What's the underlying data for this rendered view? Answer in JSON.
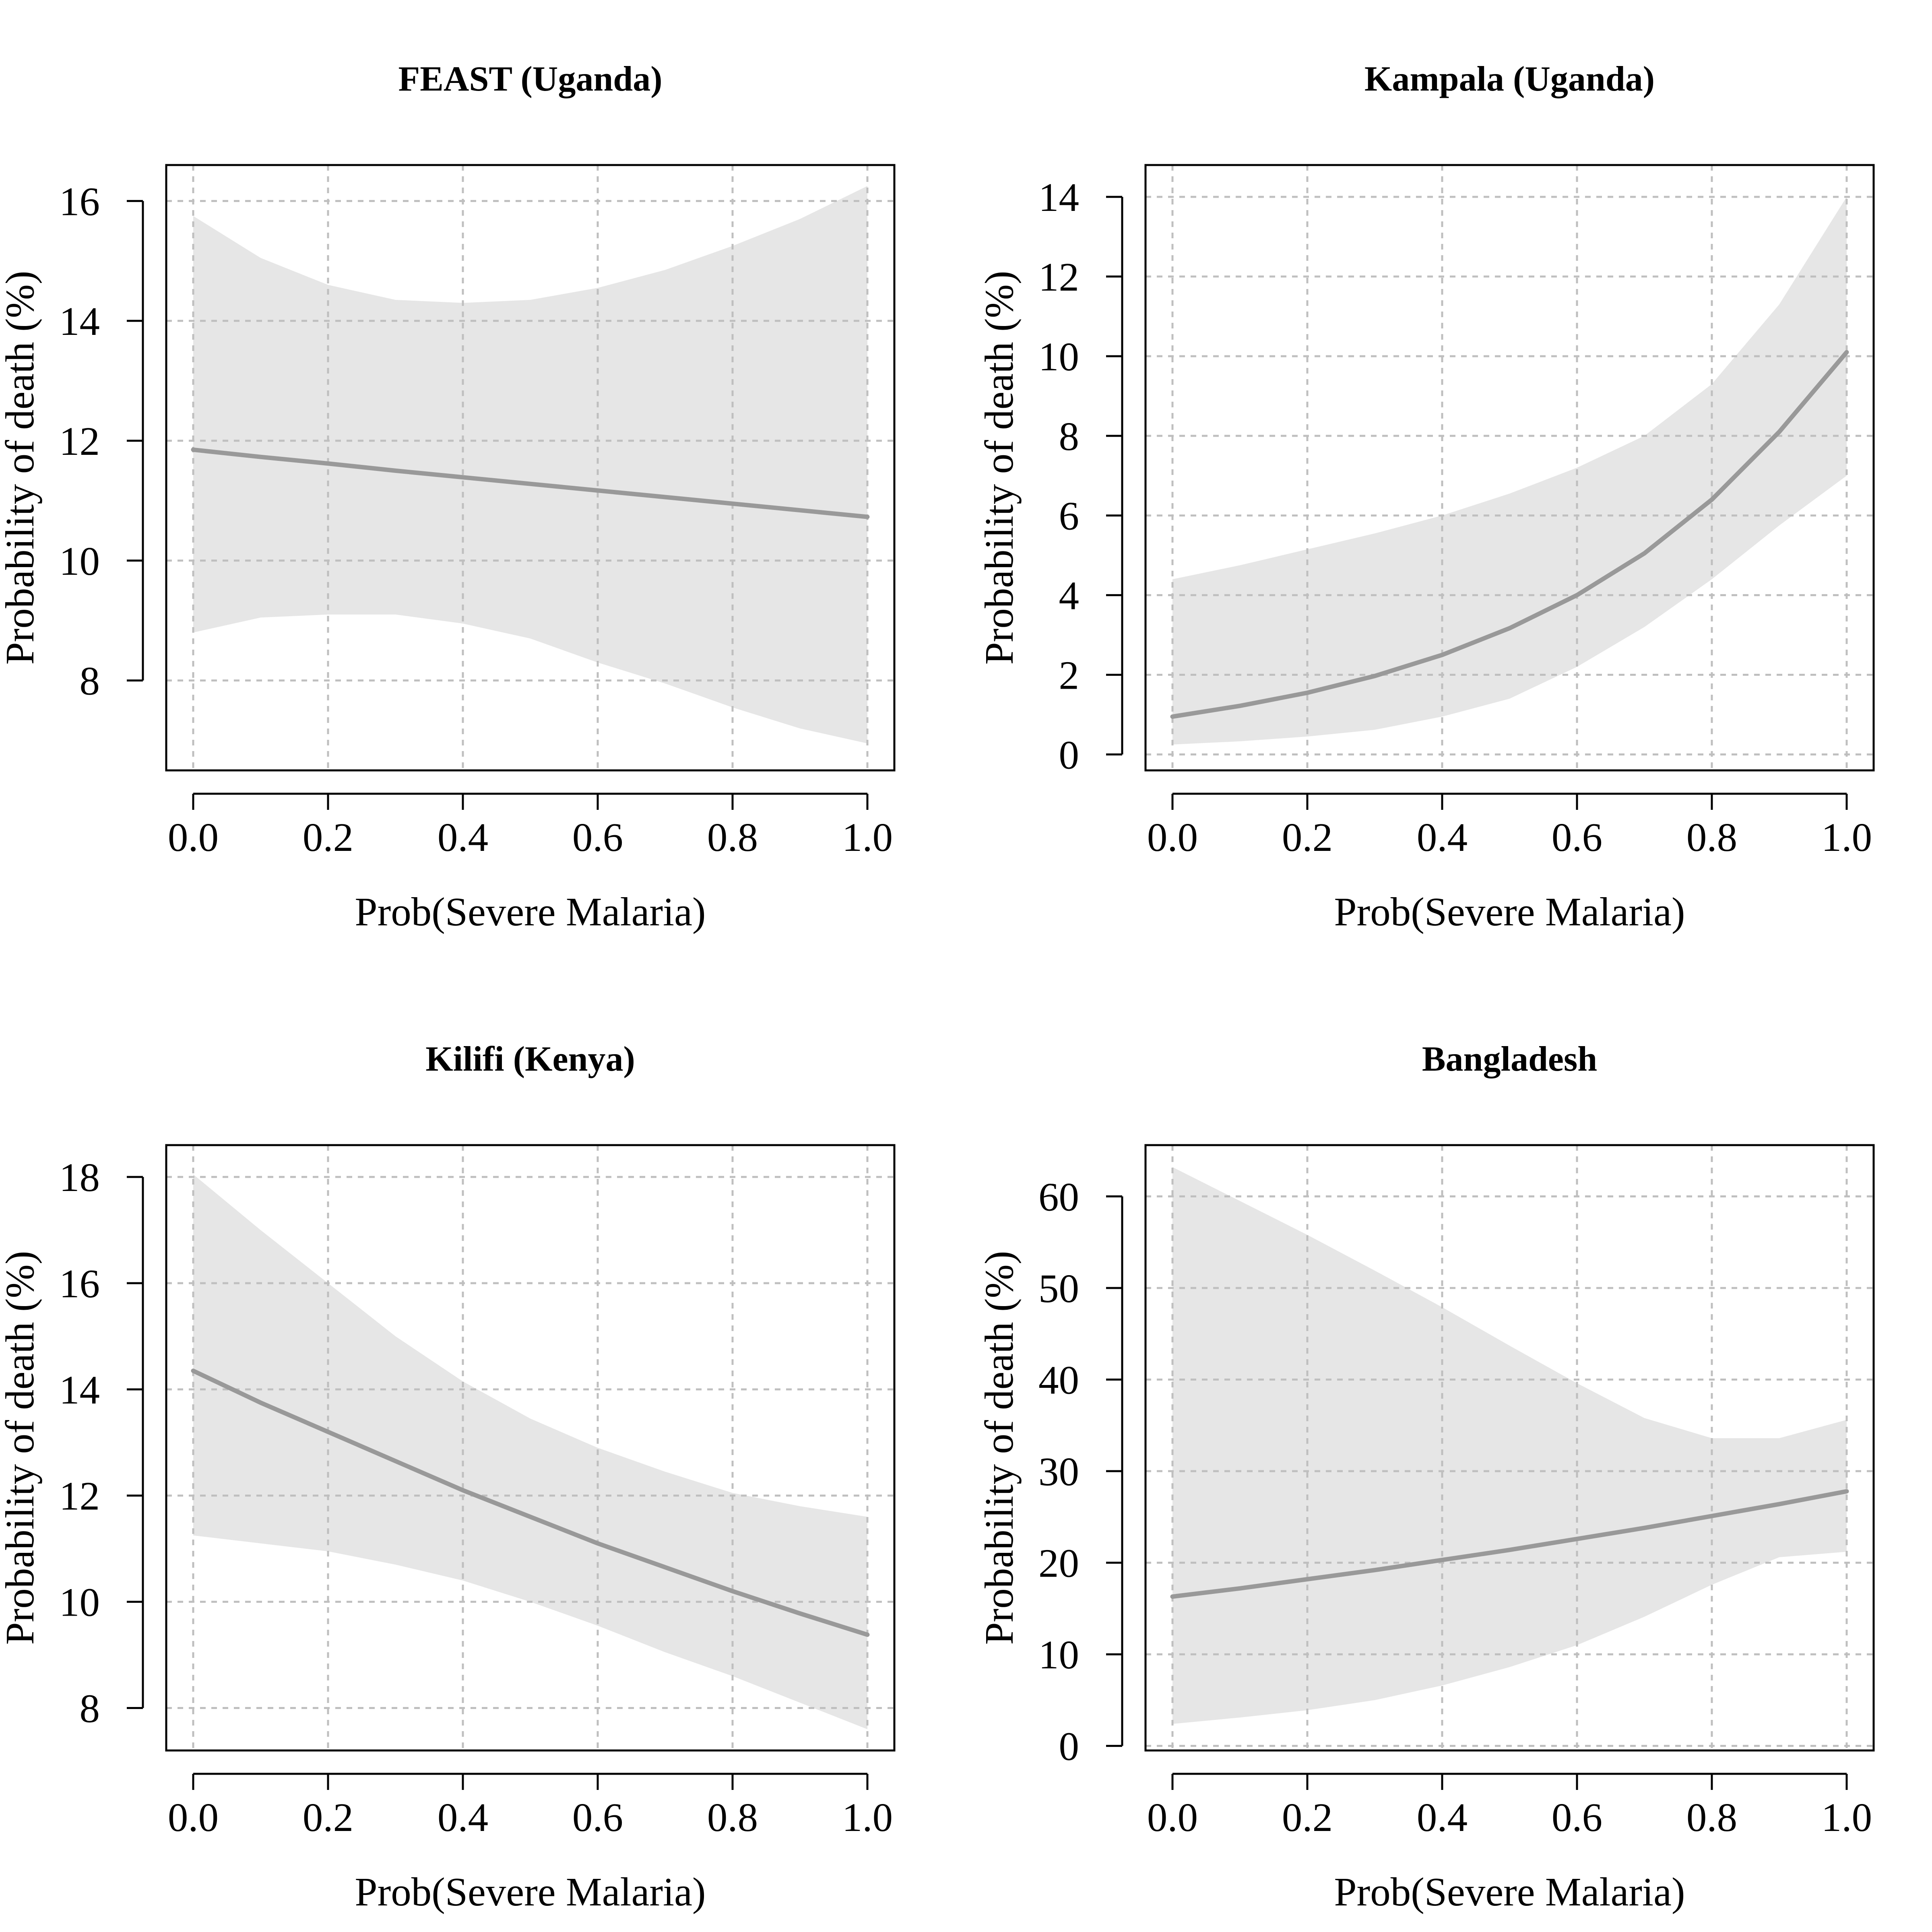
{
  "chart_data": [
    {
      "type": "line",
      "title": "FEAST (Uganda)",
      "xlabel": "Prob(Severe Malaria)",
      "ylabel": "Probability of death (%)",
      "xlim": [
        0,
        1
      ],
      "ylim": [
        6.5,
        16.6
      ],
      "xticks": [
        "0.0",
        "0.2",
        "0.4",
        "0.6",
        "0.8",
        "1.0"
      ],
      "yticks": [
        "8",
        "10",
        "12",
        "14",
        "16"
      ],
      "grid": true,
      "series": [
        {
          "x": [
            0,
            0.1,
            0.2,
            0.3,
            0.4,
            0.5,
            0.6,
            0.7,
            0.8,
            0.9,
            1.0
          ],
          "values": [
            11.85,
            11.73,
            11.62,
            11.5,
            11.39,
            11.28,
            11.17,
            11.06,
            10.95,
            10.84,
            10.73
          ],
          "lower": [
            8.8,
            9.05,
            9.1,
            9.1,
            8.95,
            8.7,
            8.3,
            7.95,
            7.55,
            7.2,
            6.95
          ],
          "upper": [
            15.75,
            15.05,
            14.6,
            14.35,
            14.3,
            14.35,
            14.55,
            14.85,
            15.25,
            15.7,
            16.25
          ]
        }
      ]
    },
    {
      "type": "line",
      "title": "Kampala (Uganda)",
      "xlabel": "Prob(Severe Malaria)",
      "ylabel": "Probability of death (%)",
      "xlim": [
        0,
        1
      ],
      "ylim": [
        -0.4,
        14.8
      ],
      "xticks": [
        "0.0",
        "0.2",
        "0.4",
        "0.6",
        "0.8",
        "1.0"
      ],
      "yticks": [
        "0",
        "2",
        "4",
        "6",
        "8",
        "10",
        "12",
        "14"
      ],
      "grid": true,
      "series": [
        {
          "x": [
            0,
            0.1,
            0.2,
            0.3,
            0.4,
            0.5,
            0.6,
            0.7,
            0.8,
            0.9,
            1.0
          ],
          "values": [
            0.95,
            1.22,
            1.55,
            1.97,
            2.5,
            3.17,
            4.0,
            5.05,
            6.4,
            8.1,
            10.1
          ],
          "lower": [
            0.25,
            0.33,
            0.45,
            0.62,
            0.95,
            1.4,
            2.2,
            3.2,
            4.4,
            5.75,
            7.0
          ],
          "upper": [
            4.4,
            4.75,
            5.15,
            5.55,
            6.0,
            6.55,
            7.2,
            8.0,
            9.3,
            11.3,
            14.0
          ]
        }
      ]
    },
    {
      "type": "line",
      "title": "Kilifi (Kenya)",
      "xlabel": "Prob(Severe Malaria)",
      "ylabel": "Probability of death (%)",
      "xlim": [
        0,
        1
      ],
      "ylim": [
        7.2,
        18.6
      ],
      "xticks": [
        "0.0",
        "0.2",
        "0.4",
        "0.6",
        "0.8",
        "1.0"
      ],
      "yticks": [
        "8",
        "10",
        "12",
        "14",
        "16",
        "18"
      ],
      "grid": true,
      "series": [
        {
          "x": [
            0,
            0.1,
            0.2,
            0.3,
            0.4,
            0.5,
            0.6,
            0.7,
            0.8,
            0.9,
            1.0
          ],
          "values": [
            14.35,
            13.75,
            13.2,
            12.65,
            12.1,
            11.6,
            11.1,
            10.65,
            10.2,
            9.78,
            9.38
          ],
          "lower": [
            11.25,
            11.1,
            10.95,
            10.7,
            10.4,
            10.0,
            9.55,
            9.05,
            8.6,
            8.1,
            7.6
          ],
          "upper": [
            18.05,
            17.0,
            16.0,
            15.0,
            14.15,
            13.45,
            12.9,
            12.45,
            12.05,
            11.8,
            11.6
          ]
        }
      ]
    },
    {
      "type": "line",
      "title": "Bangladesh",
      "xlabel": "Prob(Severe Malaria)",
      "ylabel": "Probability of death (%)",
      "xlim": [
        0,
        1
      ],
      "ylim": [
        -0.5,
        65.6
      ],
      "xticks": [
        "0.0",
        "0.2",
        "0.4",
        "0.6",
        "0.8",
        "1.0"
      ],
      "yticks": [
        "0",
        "10",
        "20",
        "30",
        "40",
        "50",
        "60"
      ],
      "grid": true,
      "series": [
        {
          "x": [
            0,
            0.1,
            0.2,
            0.3,
            0.4,
            0.5,
            0.6,
            0.7,
            0.8,
            0.9,
            1.0
          ],
          "values": [
            16.3,
            17.2,
            18.2,
            19.2,
            20.3,
            21.4,
            22.6,
            23.8,
            25.1,
            26.4,
            27.8
          ],
          "lower": [
            2.4,
            3.1,
            3.9,
            5.0,
            6.6,
            8.6,
            11.0,
            14.1,
            17.6,
            20.6,
            21.2
          ],
          "upper": [
            63.2,
            59.5,
            55.8,
            51.9,
            47.9,
            43.7,
            39.6,
            35.8,
            33.6,
            33.6,
            35.6
          ]
        }
      ]
    }
  ]
}
